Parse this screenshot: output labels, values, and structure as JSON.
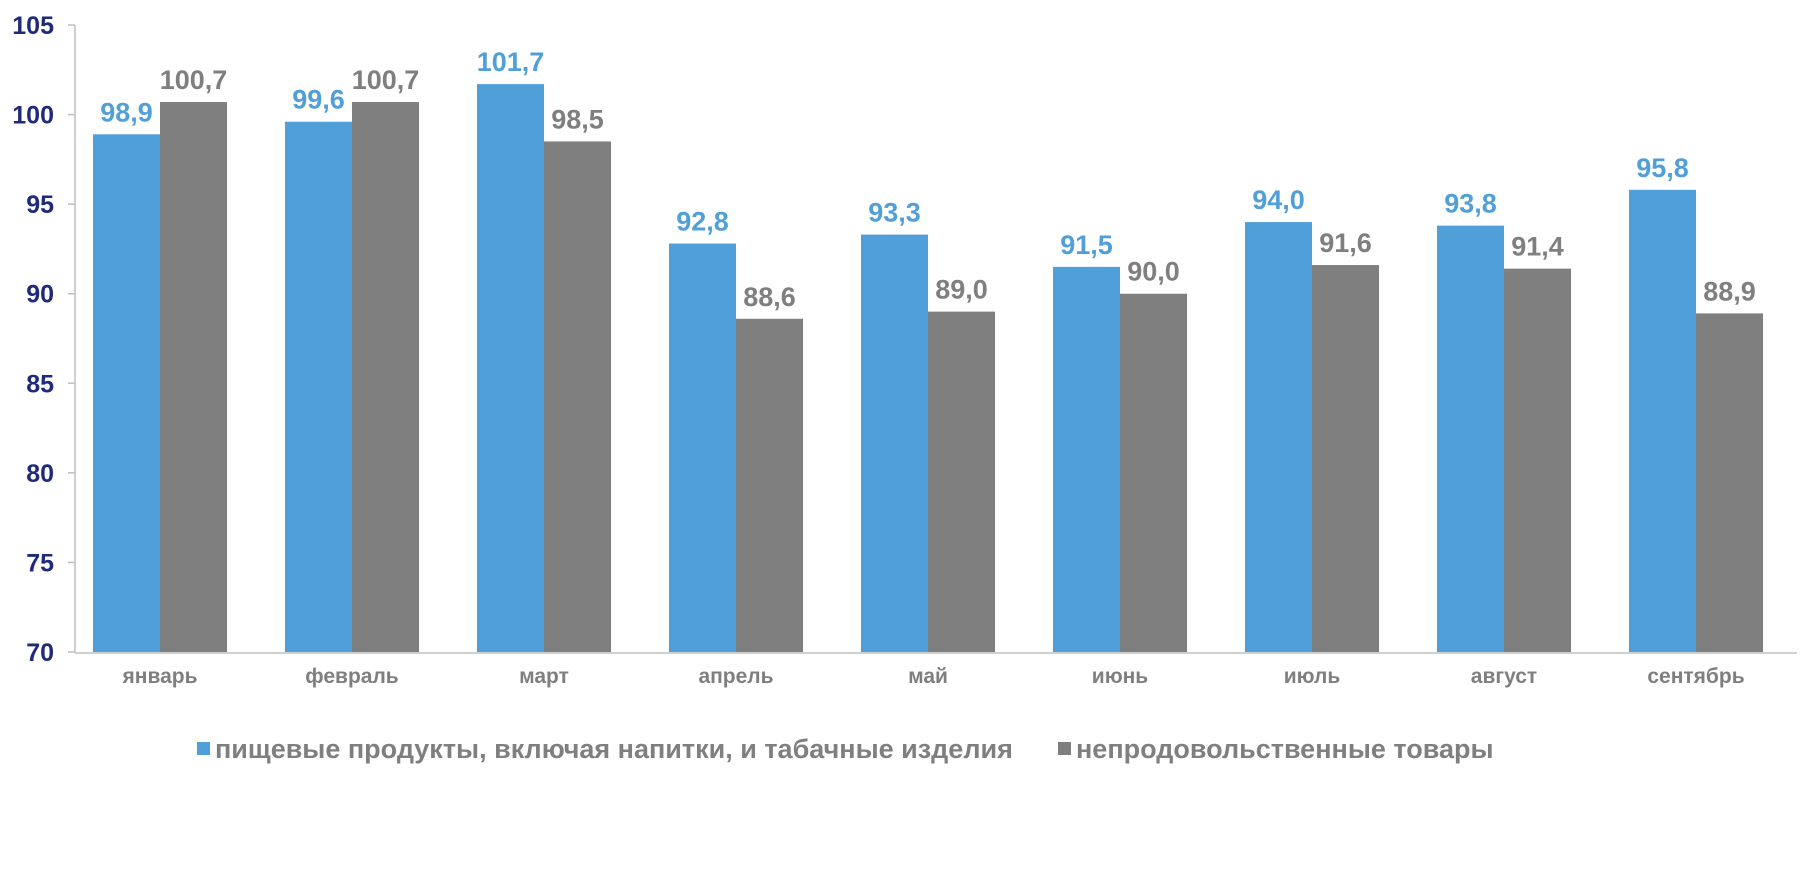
{
  "chart_data": {
    "type": "bar",
    "categories": [
      "январь",
      "февраль",
      "март",
      "апрель",
      "май",
      "июнь",
      "июль",
      "август",
      "сентябрь"
    ],
    "series": [
      {
        "name": "пищевые продукты, включая напитки, и табачные изделия",
        "color": "#519fd8",
        "label_color": "#519fd8",
        "values": [
          98.9,
          99.6,
          101.7,
          92.8,
          93.3,
          91.5,
          94.0,
          93.8,
          95.8
        ],
        "labels": [
          "98,9",
          "99,6",
          "101,7",
          "92,8",
          "93,3",
          "91,5",
          "94,0",
          "93,8",
          "95,8"
        ]
      },
      {
        "name": "непродовольственные товары",
        "color": "#7f7f7f",
        "label_color": "#7f7f7f",
        "values": [
          100.7,
          100.7,
          98.5,
          88.6,
          89.0,
          90.0,
          91.6,
          91.4,
          88.9
        ],
        "labels": [
          "100,7",
          "100,7",
          "98,5",
          "88,6",
          "89,0",
          "90,0",
          "91,6",
          "91,4",
          "88,9"
        ]
      }
    ],
    "ylim": [
      70,
      105
    ],
    "yticks": [
      "70",
      "75",
      "80",
      "85",
      "90",
      "95",
      "100",
      "105"
    ],
    "ytick_values": [
      70,
      75,
      80,
      85,
      90,
      95,
      100,
      105
    ],
    "title": "",
    "xlabel": "",
    "ylabel": "",
    "grid": false,
    "legend_position": "bottom",
    "axis_label_color": "#1f2a7a"
  }
}
